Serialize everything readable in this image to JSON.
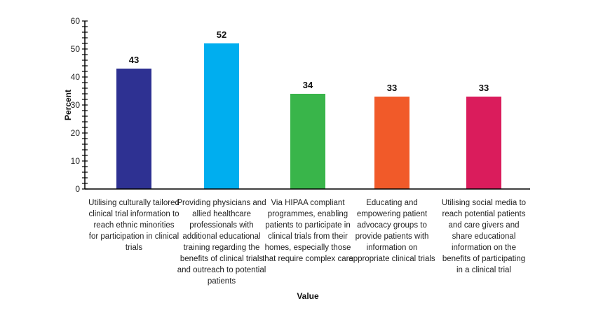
{
  "chart_data": {
    "type": "bar",
    "title": "",
    "xlabel": "Value",
    "ylabel": "Percent",
    "ylim": [
      0,
      60
    ],
    "yticks": [
      0,
      10,
      20,
      30,
      40,
      50,
      60
    ],
    "minor_tick_step": 2,
    "grid": false,
    "categories": [
      "Utilising culturally tailored clinical trial information to reach ethnic minorities for participation in clinical trials",
      "Providing physicians and allied healthcare professionals with additional educational training regarding the benefits of clinical trials and outreach to potential patients",
      "Via HIPAA compliant programmes, enabling patients to participate in clinical trials from their homes, especially those that require complex care",
      "Educating and empowering patient advocacy groups to provide patients with information on appropriate clinical trials",
      "Utilising social media to reach potential patients and care givers and share educational information on the benefits of participating in a clinical trial"
    ],
    "values": [
      43,
      52,
      34,
      33,
      33
    ],
    "colors": [
      "#2e3192",
      "#00aeef",
      "#39b54a",
      "#f15a29",
      "#da1c5c"
    ]
  }
}
